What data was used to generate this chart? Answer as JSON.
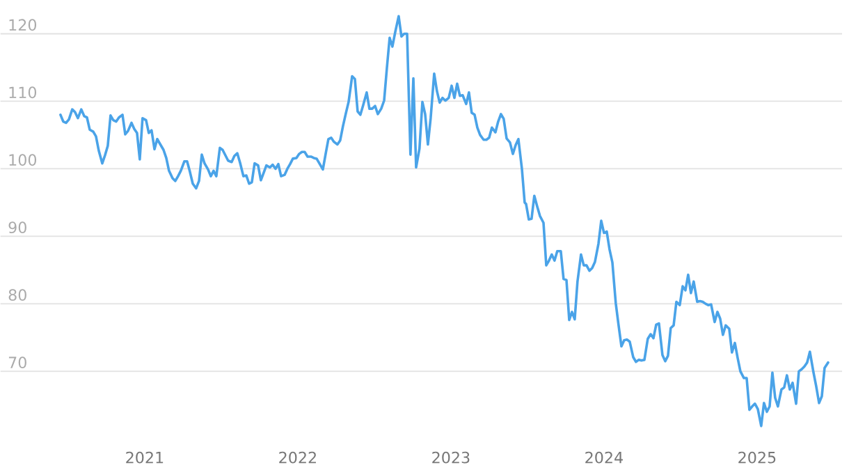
{
  "chart_data": {
    "type": "line",
    "xlim": [
      2020.055,
      2025.555
    ],
    "ylim": [
      59,
      125
    ],
    "xticks": [
      2021,
      2022,
      2023,
      2024,
      2025
    ],
    "yticks": [
      70,
      80,
      90,
      100,
      110,
      120
    ],
    "grid": "y",
    "legend": false,
    "marker": "none",
    "line_style": "solid",
    "series": [
      {
        "color": "#4aa3e8",
        "x": [
          2020.45,
          2020.468,
          2020.486,
          2020.505,
          2020.527,
          2020.545,
          2020.564,
          2020.586,
          2020.605,
          2020.623,
          2020.641,
          2020.664,
          2020.682,
          2020.7,
          2020.723,
          2020.741,
          2020.759,
          2020.777,
          2020.795,
          2020.814,
          2020.832,
          2020.855,
          2020.873,
          2020.891,
          2020.914,
          2020.932,
          2020.95,
          2020.968,
          2020.986,
          2021.009,
          2021.027,
          2021.045,
          2021.064,
          2021.082,
          2021.105,
          2021.123,
          2021.141,
          2021.159,
          2021.182,
          2021.2,
          2021.218,
          2021.236,
          2021.259,
          2021.277,
          2021.295,
          2021.314,
          2021.336,
          2021.355,
          2021.373,
          2021.391,
          2021.414,
          2021.432,
          2021.45,
          2021.468,
          2021.491,
          2021.509,
          2021.527,
          2021.545,
          2021.568,
          2021.586,
          2021.605,
          2021.623,
          2021.645,
          2021.664,
          2021.682,
          2021.7,
          2021.718,
          2021.741,
          2021.759,
          2021.777,
          2021.795,
          2021.818,
          2021.836,
          2021.855,
          2021.873,
          2021.891,
          2021.914,
          2021.932,
          2021.95,
          2021.968,
          2021.991,
          2022.009,
          2022.027,
          2022.045,
          2022.064,
          2022.086,
          2022.105,
          2022.123,
          2022.141,
          2022.164,
          2022.182,
          2022.2,
          2022.218,
          2022.236,
          2022.259,
          2022.277,
          2022.295,
          2022.314,
          2022.332,
          2022.355,
          2022.373,
          2022.391,
          2022.409,
          2022.427,
          2022.45,
          2022.468,
          2022.486,
          2022.505,
          2022.523,
          2022.545,
          2022.564,
          2022.582,
          2022.6,
          2022.618,
          2022.636,
          2022.659,
          2022.677,
          2022.695,
          2022.714,
          2022.736,
          2022.755,
          2022.773,
          2022.795,
          2022.814,
          2022.832,
          2022.85,
          2022.868,
          2022.891,
          2022.909,
          2022.927,
          2022.945,
          2022.964,
          2022.986,
          2023.005,
          2023.023,
          2023.041,
          2023.059,
          2023.077,
          2023.1,
          2023.118,
          2023.136,
          2023.155,
          2023.173,
          2023.191,
          2023.214,
          2023.232,
          2023.25,
          2023.268,
          2023.291,
          2023.309,
          2023.327,
          2023.345,
          2023.364,
          2023.386,
          2023.405,
          2023.423,
          2023.441,
          2023.464,
          2023.482,
          2023.491,
          2023.509,
          2023.527,
          2023.545,
          2023.564,
          2023.582,
          2023.605,
          2023.623,
          2023.641,
          2023.659,
          2023.677,
          2023.695,
          2023.718,
          2023.736,
          2023.755,
          2023.773,
          2023.791,
          2023.809,
          2023.827,
          2023.85,
          2023.868,
          2023.886,
          2023.905,
          2023.923,
          2023.941,
          2023.964,
          2023.982,
          2024.0,
          2024.018,
          2024.036,
          2024.055,
          2024.077,
          2024.095,
          2024.114,
          2024.132,
          2024.15,
          2024.168,
          2024.191,
          2024.209,
          2024.227,
          2024.245,
          2024.264,
          2024.286,
          2024.305,
          2024.323,
          2024.341,
          2024.359,
          2024.382,
          2024.4,
          2024.418,
          2024.436,
          2024.455,
          2024.473,
          2024.495,
          2024.514,
          2024.532,
          2024.55,
          2024.568,
          2024.586,
          2024.609,
          2024.627,
          2024.645,
          2024.664,
          2024.682,
          2024.7,
          2024.723,
          2024.741,
          2024.759,
          2024.777,
          2024.795,
          2024.818,
          2024.836,
          2024.855,
          2024.873,
          2024.891,
          2024.914,
          2024.932,
          2024.95,
          2024.968,
          2024.986,
          2025.005,
          2025.027,
          2025.045,
          2025.064,
          2025.082,
          2025.1,
          2025.118,
          2025.136,
          2025.159,
          2025.177,
          2025.195,
          2025.214,
          2025.232,
          2025.255,
          2025.273,
          2025.291,
          2025.309,
          2025.327,
          2025.345,
          2025.368,
          2025.386,
          2025.405,
          2025.423,
          2025.441,
          2025.464
        ],
        "values": [
          108,
          107,
          106.8,
          107.3,
          108.8,
          108.4,
          107.5,
          108.8,
          107.8,
          107.6,
          105.8,
          105.5,
          104.8,
          102.7,
          100.8,
          102,
          103.4,
          107.9,
          107.2,
          107,
          107.6,
          108,
          105.1,
          105.6,
          106.8,
          105.9,
          105.3,
          101.4,
          107.5,
          107.2,
          105.3,
          105.7,
          102.9,
          104.4,
          103.5,
          102.8,
          101.6,
          99.7,
          98.6,
          98.2,
          98.9,
          99.7,
          101.1,
          101.1,
          99.6,
          97.8,
          97.1,
          98.2,
          102.1,
          100.8,
          99.9,
          98.9,
          99.7,
          98.9,
          103.1,
          102.8,
          102,
          101.2,
          101,
          101.9,
          102.3,
          100.9,
          98.9,
          99,
          97.8,
          98,
          100.8,
          100.5,
          98.3,
          99.4,
          100.5,
          100.2,
          100.6,
          100,
          100.7,
          98.9,
          99.1,
          100,
          100.7,
          101.5,
          101.6,
          102.2,
          102.5,
          102.5,
          101.8,
          101.8,
          101.6,
          101.5,
          100.8,
          99.9,
          102.2,
          104.4,
          104.6,
          104,
          103.6,
          104.2,
          106.3,
          108.2,
          109.9,
          113.7,
          113.3,
          108.5,
          108,
          109.4,
          111.3,
          108.9,
          108.9,
          109.3,
          108.1,
          108.9,
          110.1,
          114.9,
          119.4,
          118.1,
          120.2,
          122.6,
          119.6,
          120,
          120,
          102.1,
          113.4,
          100.2,
          103,
          109.9,
          108.1,
          103.6,
          107.5,
          114.1,
          111.5,
          109.8,
          110.5,
          110.1,
          110.5,
          112.3,
          110.5,
          112.6,
          110.8,
          110.9,
          109.6,
          111.3,
          108.3,
          108,
          106.1,
          105,
          104.3,
          104.3,
          104.6,
          106.1,
          105.4,
          107,
          108.1,
          107.4,
          104.5,
          103.9,
          102.2,
          103.5,
          104.4,
          100,
          95,
          94.8,
          92.5,
          92.6,
          96,
          94.4,
          93,
          92,
          85.7,
          86.4,
          87.3,
          86.4,
          87.8,
          87.8,
          83.7,
          83.5,
          77.6,
          78.8,
          77.7,
          83.3,
          87.3,
          85.7,
          85.7,
          84.9,
          85.3,
          86.2,
          88.9,
          92.3,
          90.5,
          90.7,
          88.1,
          86.1,
          80.1,
          76.9,
          73.7,
          74.6,
          74.7,
          74.4,
          72.1,
          71.4,
          71.7,
          71.6,
          71.7,
          74.8,
          75.5,
          74.9,
          76.9,
          77.1,
          72.4,
          71.5,
          72.3,
          76.4,
          76.8,
          80.3,
          79.8,
          82.6,
          82,
          84.3,
          81.6,
          83.3,
          80.3,
          80.4,
          80.3,
          80,
          79.8,
          79.9,
          77.3,
          78.8,
          77.8,
          75.4,
          76.8,
          76.3,
          72.8,
          74.2,
          72,
          70,
          69,
          69,
          64.3,
          64.8,
          65.2,
          64.4,
          61.9,
          65.3,
          64,
          64.8,
          69.8,
          66.1,
          64.8,
          67.3,
          67.6,
          69.4,
          67.3,
          68.3,
          65.2,
          70,
          70.3,
          70.7,
          71.3,
          72.9,
          69.9,
          67.8,
          65.3,
          66.3,
          70.5,
          71.3
        ]
      }
    ]
  }
}
